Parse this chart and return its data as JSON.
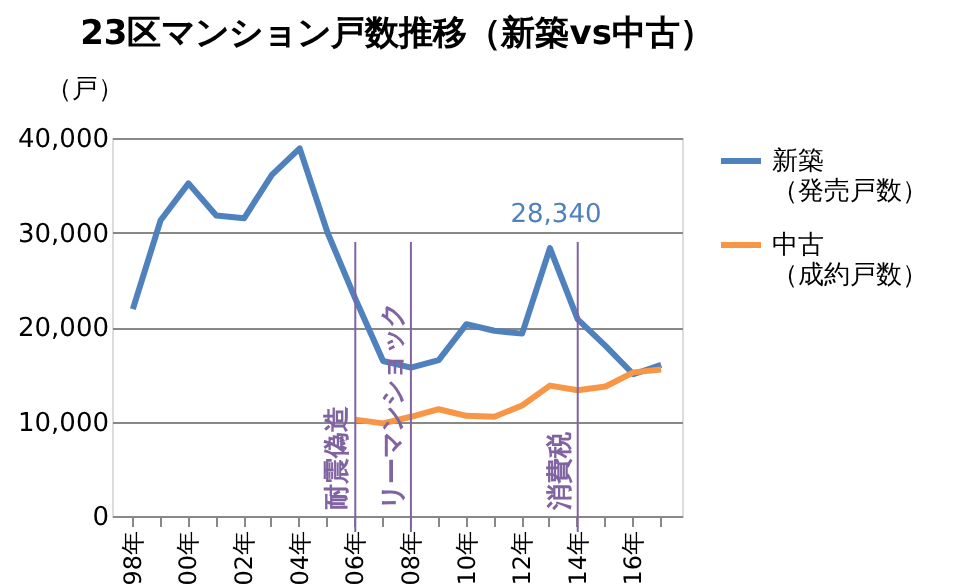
{
  "chart_data": {
    "type": "line",
    "title": "23区マンション戸数推移（新築vs中古）",
    "ylabel": "（戸）",
    "categories": [
      "98年",
      null,
      "00年",
      null,
      "02年",
      null,
      "04年",
      null,
      "06年",
      null,
      "08年",
      null,
      "10年",
      null,
      "12年",
      null,
      "14年",
      null,
      "16年",
      null
    ],
    "ylim": [
      0,
      40000
    ],
    "yticks": [
      {
        "value": 0,
        "label": "0"
      },
      {
        "value": 10000,
        "label": "10,000"
      },
      {
        "value": 20000,
        "label": "20,000"
      },
      {
        "value": 30000,
        "label": "30,000"
      },
      {
        "value": 40000,
        "label": "40,000"
      }
    ],
    "series": [
      {
        "name": "新築（発売戸数）",
        "color": "#4f81bd",
        "values": [
          21900,
          31300,
          35200,
          31800,
          31500,
          36100,
          38900,
          30000,
          23000,
          16400,
          15700,
          16500,
          20300,
          19600,
          19300,
          28340,
          20800,
          18000,
          15000,
          16000
        ]
      },
      {
        "name": "中古（成約戸数）",
        "color": "#f79646",
        "values": [
          null,
          null,
          null,
          null,
          null,
          null,
          null,
          null,
          10200,
          9800,
          10500,
          11300,
          10600,
          10500,
          11700,
          13800,
          13300,
          13700,
          15200,
          15500
        ]
      }
    ],
    "annotations": [
      "28,340"
    ],
    "ref_lines": [
      {
        "axis": "x",
        "value": "06年",
        "label": "耐震偽造",
        "color": "#8064a2"
      },
      {
        "axis": "x",
        "value": "08年",
        "label": "リーマンショック",
        "color": "#8064a2"
      },
      {
        "axis": "x",
        "value": "14年",
        "label": "消費税",
        "color": "#8064a2"
      }
    ],
    "grid": "y",
    "legend": "right",
    "line_style": "solid",
    "marker": "none"
  }
}
